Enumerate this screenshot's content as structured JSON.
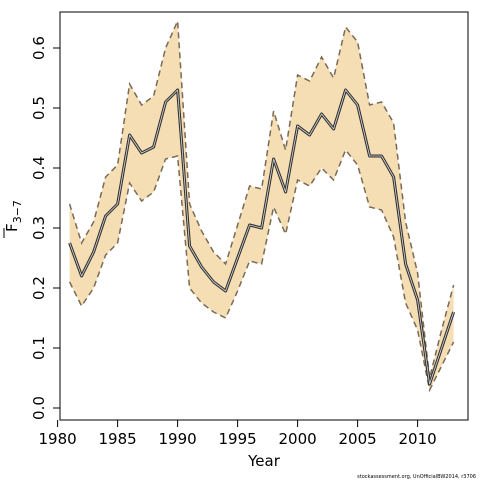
{
  "chart_data": {
    "type": "line",
    "xlabel": "Year",
    "ylabel": "F",
    "ylabel_subscript": "3−7",
    "xlim": [
      1980.2,
      2014.2
    ],
    "ylim": [
      -0.02,
      0.66
    ],
    "xticks": [
      1980,
      1985,
      1990,
      1995,
      2000,
      2005,
      2010
    ],
    "yticks": [
      0.0,
      0.1,
      0.2,
      0.3,
      0.4,
      0.5,
      0.6
    ],
    "ytick_labels": [
      "0.0",
      "0.1",
      "0.2",
      "0.3",
      "0.4",
      "0.5",
      "0.6"
    ],
    "credit": "stockassessment.org, UnOfficialBW2014, r3706",
    "colors": {
      "band": "#f5deb3",
      "bounds": "#7a6a55",
      "estimate": "#333333"
    },
    "series": [
      {
        "x": [
          1981,
          1982,
          1983,
          1984,
          1985,
          1986,
          1987,
          1988,
          1989,
          1990,
          1991,
          1992,
          1993,
          1994,
          1995,
          1996,
          1997,
          1998,
          1999,
          2000,
          2001,
          2002,
          2003,
          2004,
          2005,
          2006,
          2007,
          2008,
          2009,
          2010,
          2011,
          2012,
          2013
        ],
        "estimate": [
          0.275,
          0.22,
          0.26,
          0.32,
          0.34,
          0.455,
          0.425,
          0.435,
          0.51,
          0.53,
          0.27,
          0.235,
          0.21,
          0.195,
          0.25,
          0.305,
          0.3,
          0.415,
          0.36,
          0.47,
          0.455,
          0.49,
          0.465,
          0.53,
          0.505,
          0.42,
          0.42,
          0.385,
          0.24,
          0.18,
          0.04,
          0.1,
          0.16
        ],
        "lower": [
          0.21,
          0.17,
          0.2,
          0.255,
          0.275,
          0.375,
          0.345,
          0.36,
          0.415,
          0.42,
          0.2,
          0.175,
          0.16,
          0.15,
          0.195,
          0.245,
          0.24,
          0.335,
          0.29,
          0.38,
          0.37,
          0.4,
          0.38,
          0.43,
          0.405,
          0.335,
          0.33,
          0.285,
          0.175,
          0.13,
          0.03,
          0.07,
          0.11
        ],
        "upper": [
          0.34,
          0.275,
          0.31,
          0.385,
          0.405,
          0.54,
          0.505,
          0.52,
          0.6,
          0.645,
          0.34,
          0.295,
          0.26,
          0.24,
          0.305,
          0.37,
          0.365,
          0.495,
          0.43,
          0.555,
          0.545,
          0.585,
          0.55,
          0.635,
          0.61,
          0.505,
          0.51,
          0.475,
          0.31,
          0.225,
          0.05,
          0.13,
          0.205
        ]
      }
    ]
  }
}
